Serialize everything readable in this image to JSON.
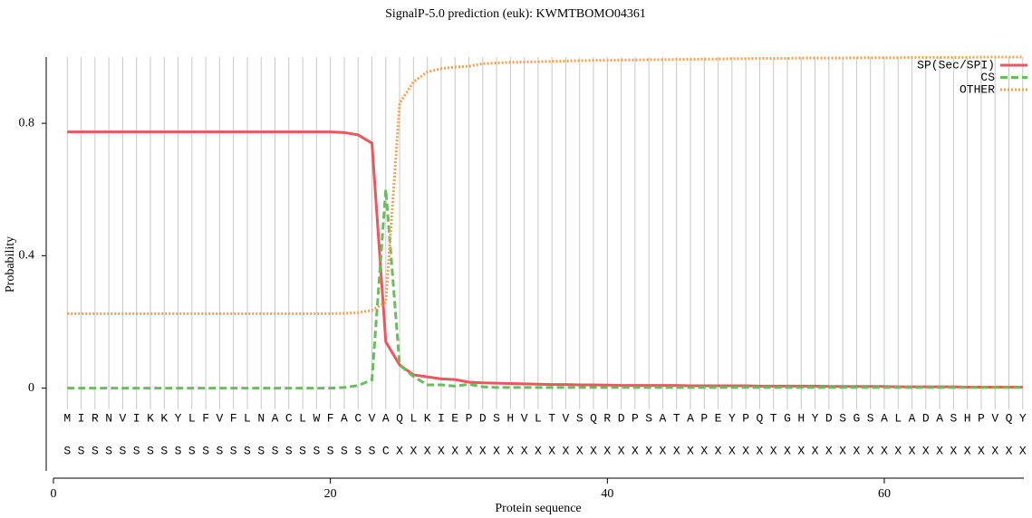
{
  "chart_data": {
    "type": "line",
    "title": "SignalP-5.0 prediction (euk):  KWMTBOMO04361",
    "x_label": "Protein sequence",
    "y_label": "Probability",
    "x": [
      1,
      2,
      3,
      4,
      5,
      6,
      7,
      8,
      9,
      10,
      11,
      12,
      13,
      14,
      15,
      16,
      17,
      18,
      19,
      20,
      21,
      22,
      23,
      24,
      25,
      26,
      27,
      28,
      29,
      30,
      31,
      32,
      33,
      34,
      35,
      36,
      37,
      38,
      39,
      40,
      41,
      42,
      43,
      44,
      45,
      46,
      47,
      48,
      49,
      50,
      51,
      52,
      53,
      54,
      55,
      56,
      57,
      58,
      59,
      60,
      61,
      62,
      63,
      64,
      65,
      66,
      67,
      68,
      69,
      70
    ],
    "xlim": [
      0,
      70
    ],
    "xticks": [
      0,
      20,
      40,
      60
    ],
    "ylim": [
      -0.25,
      1.0
    ],
    "yticks": [
      0,
      0.4,
      0.8
    ],
    "grid": true,
    "legend": "upper right",
    "sequence": [
      "M",
      "I",
      "R",
      "N",
      "V",
      "I",
      "K",
      "K",
      "Y",
      "L",
      "F",
      "V",
      "F",
      "L",
      "N",
      "A",
      "C",
      "L",
      "W",
      "F",
      "A",
      "C",
      "V",
      "A",
      "Q",
      "L",
      "K",
      "I",
      "E",
      "P",
      "D",
      "S",
      "H",
      "V",
      "L",
      "T",
      "V",
      "S",
      "Q",
      "R",
      "D",
      "P",
      "S",
      "A",
      "T",
      "A",
      "P",
      "E",
      "Y",
      "P",
      "Q",
      "T",
      "G",
      "H",
      "Y",
      "D",
      "S",
      "G",
      "S",
      "A",
      "L",
      "A",
      "D",
      "A",
      "S",
      "H",
      "P",
      "V",
      "Q",
      "Y"
    ],
    "labels": [
      "S",
      "S",
      "S",
      "S",
      "S",
      "S",
      "S",
      "S",
      "S",
      "S",
      "S",
      "S",
      "S",
      "S",
      "S",
      "S",
      "S",
      "S",
      "S",
      "S",
      "S",
      "S",
      "S",
      "C",
      "X",
      "X",
      "X",
      "X",
      "X",
      "X",
      "X",
      "X",
      "X",
      "X",
      "X",
      "X",
      "X",
      "X",
      "X",
      "X",
      "X",
      "X",
      "X",
      "X",
      "X",
      "X",
      "X",
      "X",
      "X",
      "X",
      "X",
      "X",
      "X",
      "X",
      "X",
      "X",
      "X",
      "X",
      "X",
      "X",
      "X",
      "X",
      "X",
      "X",
      "X",
      "X",
      "X",
      "X",
      "X",
      "X"
    ],
    "series": [
      {
        "name": "SP(Sec/SPI)",
        "color": "#e8585e",
        "dash": "solid",
        "values": [
          0.774,
          0.774,
          0.774,
          0.774,
          0.774,
          0.774,
          0.774,
          0.774,
          0.774,
          0.774,
          0.774,
          0.774,
          0.774,
          0.774,
          0.774,
          0.774,
          0.774,
          0.774,
          0.774,
          0.774,
          0.772,
          0.765,
          0.74,
          0.14,
          0.07,
          0.04,
          0.034,
          0.028,
          0.026,
          0.018,
          0.016,
          0.015,
          0.014,
          0.013,
          0.012,
          0.011,
          0.011,
          0.01,
          0.01,
          0.009,
          0.008,
          0.008,
          0.008,
          0.008,
          0.008,
          0.007,
          0.007,
          0.007,
          0.007,
          0.007,
          0.006,
          0.006,
          0.006,
          0.006,
          0.006,
          0.005,
          0.005,
          0.005,
          0.005,
          0.005,
          0.004,
          0.004,
          0.004,
          0.004,
          0.004,
          0.003,
          0.003,
          0.003,
          0.003,
          0.003
        ]
      },
      {
        "name": "CS",
        "color": "#6abd5c",
        "dash": "dashed",
        "values": [
          0,
          0,
          0,
          0,
          0,
          0,
          0,
          0,
          0,
          0,
          0,
          0,
          0,
          0,
          0,
          0,
          0,
          0,
          0,
          0,
          0.002,
          0.008,
          0.025,
          0.6,
          0.07,
          0.035,
          0.01,
          0.01,
          0.006,
          0.012,
          0.004,
          0.002,
          0.002,
          0.002,
          0.002,
          0.002,
          0.002,
          0.002,
          0.002,
          0.002,
          0.002,
          0.002,
          0.002,
          0.002,
          0.002,
          0.002,
          0.002,
          0.002,
          0.002,
          0.002,
          0.002,
          0.002,
          0.002,
          0.002,
          0.002,
          0.002,
          0.002,
          0.002,
          0.002,
          0.002,
          0.002,
          0.002,
          0.002,
          0.002,
          0.002,
          0.002,
          0.002,
          0.002,
          0.002,
          0.002
        ]
      },
      {
        "name": "OTHER",
        "color": "#f5a04b",
        "dash": "dotted",
        "values": [
          0.225,
          0.225,
          0.225,
          0.225,
          0.225,
          0.225,
          0.225,
          0.225,
          0.225,
          0.225,
          0.225,
          0.225,
          0.225,
          0.225,
          0.225,
          0.225,
          0.225,
          0.225,
          0.225,
          0.225,
          0.226,
          0.228,
          0.235,
          0.26,
          0.86,
          0.925,
          0.955,
          0.965,
          0.97,
          0.972,
          0.98,
          0.982,
          0.984,
          0.985,
          0.986,
          0.987,
          0.988,
          0.989,
          0.99,
          0.99,
          0.991,
          0.991,
          0.992,
          0.992,
          0.993,
          0.993,
          0.994,
          0.994,
          0.995,
          0.995,
          0.996,
          0.996,
          0.996,
          0.997,
          0.997,
          0.997,
          0.997,
          0.998,
          0.998,
          0.998,
          0.998,
          0.999,
          0.999,
          0.999,
          0.999,
          0.999,
          1.0,
          1.0,
          1.0,
          1.0
        ]
      }
    ]
  }
}
